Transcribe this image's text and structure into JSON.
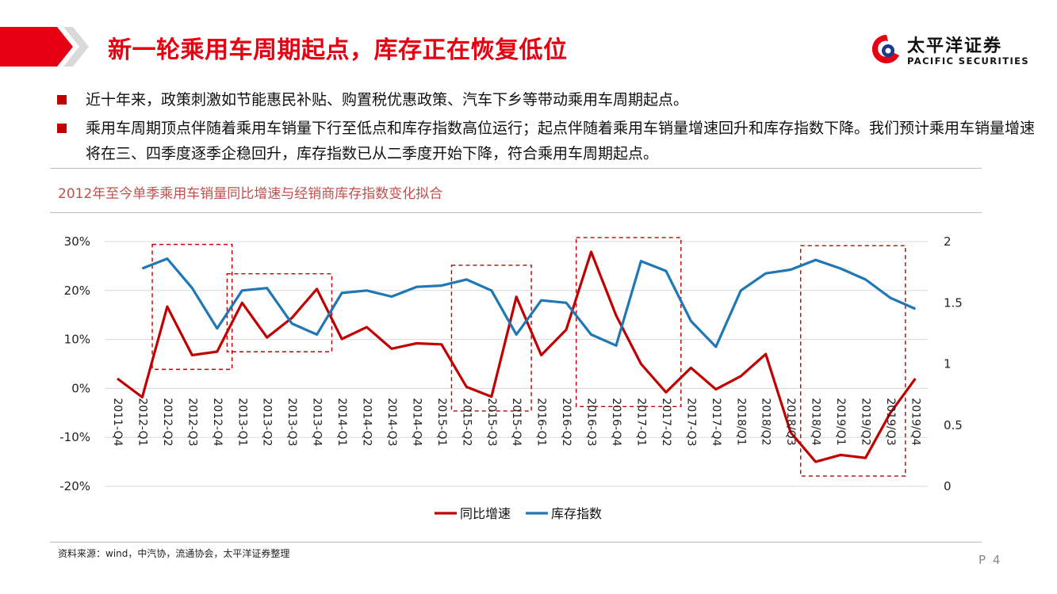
{
  "header": {
    "title": "新一轮乘用车周期起点，库存正在恢复低位",
    "logo_cn": "太平洋证券",
    "logo_en": "PACIFIC SECURITIES",
    "accent_color": "#e60012"
  },
  "bullets": [
    "近十年来，政策刺激如节能惠民补贴、购置税优惠政策、汽车下乡等带动乘用车周期起点。",
    "乘用车周期顶点伴随着乘用车销量下行至低点和库存指数高位运行；起点伴随着乘用车销量增速回升和库存指数下降。我们预计乘用车销量增速将在三、四季度逐季企稳回升，库存指数已从二季度开始下降，符合乘用车周期起点。"
  ],
  "chart_title": "2012年至今单季乘用车销量同比增速与经销商库存指数变化拟合",
  "source": "资料来源：wind，中汽协，流通协会，太平洋证券整理",
  "page_number": "P 4",
  "chart_data": {
    "type": "line",
    "categories": [
      "2011-Q4",
      "2012-Q1",
      "2012-Q2",
      "2012-Q3",
      "2012-Q4",
      "2013-Q1",
      "2013-Q2",
      "2013-Q3",
      "2013-Q4",
      "2014-Q1",
      "2014-Q2",
      "2014-Q3",
      "2014-Q4",
      "2015-Q1",
      "2015-Q2",
      "2015-Q3",
      "2015-Q4",
      "2016-Q1",
      "2016-Q2",
      "2016-Q3",
      "2016-Q4",
      "2017-Q1",
      "2017-Q2",
      "2017-Q3",
      "2017-Q4",
      "2018/Q1",
      "2018/Q2",
      "2018/Q3",
      "2018/Q4",
      "2019/Q1",
      "2019/Q2",
      "2019/Q3",
      "2019/Q4"
    ],
    "series": [
      {
        "name": "同比增速",
        "axis": "left",
        "color": "#c00000",
        "values": [
          2,
          -1.8,
          16.7,
          6.8,
          7.5,
          17.5,
          10.4,
          14.4,
          20.3,
          10.1,
          12.5,
          8.1,
          9.2,
          9.0,
          0.3,
          -1.7,
          18.7,
          6.8,
          12.0,
          27.9,
          14.9,
          5.0,
          -0.8,
          4.2,
          -0.2,
          2.5,
          7.0,
          -9.0,
          -15.0,
          -13.6,
          -14.2,
          -5.0,
          2.0
        ]
      },
      {
        "name": "库存指数",
        "axis": "right",
        "color": "#1f77b4",
        "values": [
          null,
          1.78,
          1.86,
          1.62,
          1.29,
          1.6,
          1.62,
          1.33,
          1.24,
          1.58,
          1.6,
          1.55,
          1.63,
          1.64,
          1.69,
          1.6,
          1.24,
          1.52,
          1.5,
          1.24,
          1.15,
          1.84,
          1.76,
          1.35,
          1.14,
          1.6,
          1.74,
          1.77,
          1.85,
          1.78,
          1.69,
          1.54,
          1.45
        ]
      }
    ],
    "left_axis": {
      "ticks": [
        "-20%",
        "-10%",
        "0%",
        "10%",
        "20%",
        "30%"
      ],
      "ylim": [
        -20,
        30
      ]
    },
    "right_axis": {
      "ticks": [
        "0",
        "0.5",
        "1",
        "1.5",
        "2"
      ],
      "ylim": [
        0,
        2
      ]
    },
    "highlight_periods": [
      {
        "from": "2012-Q2",
        "to": "2012-Q4"
      },
      {
        "from": "2013-Q1",
        "to": "2013-Q4"
      },
      {
        "from": "2015-Q2",
        "to": "2015-Q4"
      },
      {
        "from": "2016-Q3",
        "to": "2017-Q2"
      },
      {
        "from": "2018/Q4",
        "to": "2019/Q3"
      }
    ],
    "legend": {
      "position": "bottom"
    },
    "grid": true
  }
}
